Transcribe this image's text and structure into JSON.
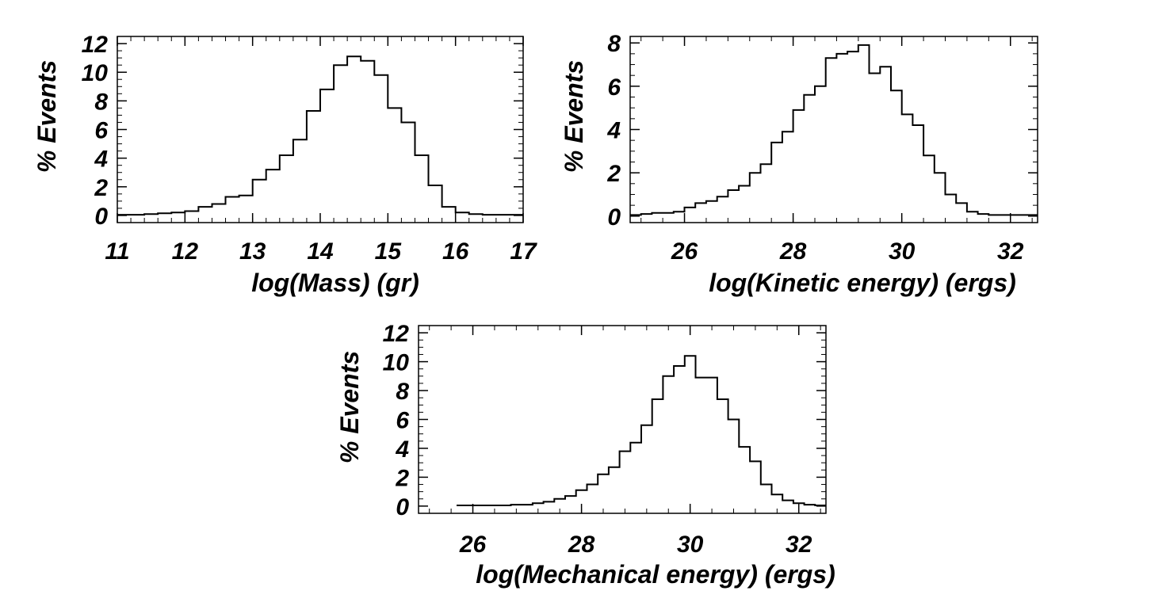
{
  "chart_data": [
    {
      "type": "histogram",
      "ylabel": "% Events",
      "xlabel": "log(Mass) (gr)",
      "xlim": [
        11,
        17
      ],
      "ylim": [
        -0.5,
        12.5
      ],
      "xticks": [
        11,
        12,
        13,
        14,
        15,
        16,
        17
      ],
      "yticks": [
        0,
        2,
        4,
        6,
        8,
        10,
        12
      ],
      "grid": false,
      "bin_edges": [
        11.0,
        11.2,
        11.4,
        11.6,
        11.8,
        12.0,
        12.2,
        12.4,
        12.6,
        12.8,
        13.0,
        13.2,
        13.4,
        13.6,
        13.8,
        14.0,
        14.2,
        14.4,
        14.6,
        14.8,
        15.0,
        15.2,
        15.4,
        15.6,
        15.8,
        16.0,
        16.2,
        16.4,
        16.6,
        16.8,
        17.0
      ],
      "values": [
        0.05,
        0.05,
        0.1,
        0.15,
        0.2,
        0.3,
        0.6,
        0.8,
        1.3,
        1.4,
        2.5,
        3.2,
        4.2,
        5.3,
        7.3,
        8.8,
        10.5,
        11.1,
        10.8,
        9.8,
        7.5,
        6.5,
        4.2,
        2.1,
        0.6,
        0.2,
        0.1,
        0.05,
        0.05,
        0.05
      ]
    },
    {
      "type": "histogram",
      "ylabel": "% Events",
      "xlabel": "log(Kinetic energy) (ergs)",
      "xlim": [
        25,
        32.5
      ],
      "ylim": [
        -0.3,
        8.3
      ],
      "xticks": [
        26,
        28,
        30,
        32
      ],
      "yticks": [
        0,
        2,
        4,
        6,
        8
      ],
      "grid": false,
      "bin_edges": [
        25.0,
        25.2,
        25.4,
        25.6,
        25.8,
        26.0,
        26.2,
        26.4,
        26.6,
        26.8,
        27.0,
        27.2,
        27.4,
        27.6,
        27.8,
        28.0,
        28.2,
        28.4,
        28.6,
        28.8,
        29.0,
        29.2,
        29.4,
        29.6,
        29.8,
        30.0,
        30.2,
        30.4,
        30.6,
        30.8,
        31.0,
        31.2,
        31.4,
        31.6,
        31.8,
        32.0,
        32.2,
        32.4,
        32.5
      ],
      "values": [
        0.05,
        0.1,
        0.15,
        0.15,
        0.2,
        0.4,
        0.6,
        0.7,
        0.9,
        1.2,
        1.4,
        2.0,
        2.4,
        3.4,
        3.9,
        4.9,
        5.6,
        6.0,
        7.3,
        7.5,
        7.6,
        7.9,
        6.6,
        6.9,
        5.8,
        4.7,
        4.2,
        2.8,
        2.0,
        1.0,
        0.6,
        0.2,
        0.1,
        0.05,
        0.05,
        0.05,
        0.05,
        0.05
      ]
    },
    {
      "type": "histogram",
      "ylabel": "% Events",
      "xlabel": "log(Mechanical energy) (ergs)",
      "xlim": [
        25,
        32.5
      ],
      "ylim": [
        -0.5,
        12.5
      ],
      "xticks": [
        26,
        28,
        30,
        32
      ],
      "yticks": [
        0,
        2,
        4,
        6,
        8,
        10,
        12
      ],
      "grid": false,
      "bin_edges": [
        25.7,
        25.9,
        26.1,
        26.3,
        26.5,
        26.7,
        26.9,
        27.1,
        27.3,
        27.5,
        27.7,
        27.9,
        28.1,
        28.3,
        28.5,
        28.7,
        28.9,
        29.1,
        29.3,
        29.5,
        29.7,
        29.9,
        30.1,
        30.3,
        30.5,
        30.7,
        30.9,
        31.1,
        31.3,
        31.5,
        31.7,
        31.9,
        32.1,
        32.3,
        32.5
      ],
      "values": [
        0.05,
        0.05,
        0.05,
        0.05,
        0.05,
        0.1,
        0.1,
        0.2,
        0.3,
        0.5,
        0.7,
        1.1,
        1.5,
        2.2,
        2.7,
        3.8,
        4.4,
        5.6,
        7.4,
        9.0,
        9.7,
        10.4,
        8.9,
        8.9,
        7.4,
        6.0,
        4.1,
        3.1,
        1.5,
        0.8,
        0.4,
        0.2,
        0.1,
        0.05
      ]
    }
  ]
}
